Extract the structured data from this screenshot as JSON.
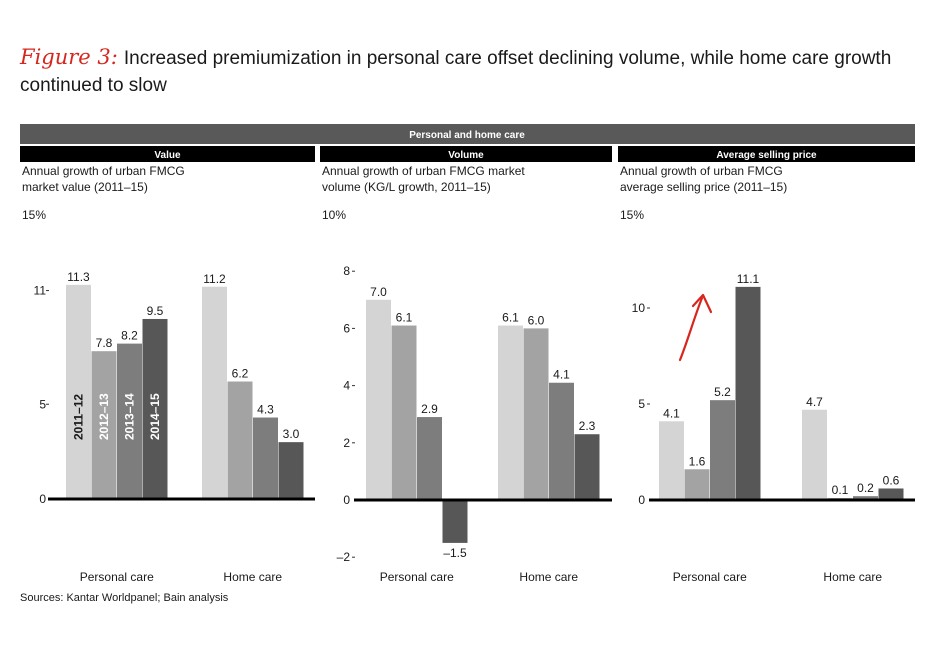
{
  "figure_label": "Figure 3:",
  "title": "Increased premiumization in personal care offset declining volume, while home care growth continued to slow",
  "header": "Personal and home care",
  "sources": "Sources: Kantar Worldpanel; Bain analysis",
  "colors": [
    "#d4d4d4",
    "#a3a3a3",
    "#7d7d7d",
    "#575757"
  ],
  "header_color": "#595959",
  "arrow_color": "#d7261e",
  "chart_data": [
    {
      "type": "bar",
      "title": "Value",
      "subtitle": [
        "Annual growth of urban FMCG",
        "market value (2011–15)"
      ],
      "unit_label": "15%",
      "categories": [
        "Personal care",
        "Home care"
      ],
      "series": [
        {
          "name": "2011–12",
          "values": [
            11.3,
            11.2
          ]
        },
        {
          "name": "2012–13",
          "values": [
            7.8,
            6.2
          ]
        },
        {
          "name": "2013–14",
          "values": [
            8.2,
            4.3
          ]
        },
        {
          "name": "2014–15",
          "values": [
            9.5,
            3.0
          ]
        }
      ],
      "value_labels": [
        [
          "11.3",
          "11.2"
        ],
        [
          "7.8",
          "6.2"
        ],
        [
          "8.2",
          "4.3"
        ],
        [
          "9.5",
          "3.0"
        ]
      ],
      "ylim": [
        0,
        15
      ],
      "yticks": [
        0,
        5,
        11
      ],
      "ytick_labels": [
        "0",
        "5",
        "11"
      ],
      "legend": "inside bars (vertical labels)"
    },
    {
      "type": "bar",
      "title": "Volume",
      "subtitle": [
        "Annual growth of urban FMCG market",
        "volume (KG/L growth, 2011–15)"
      ],
      "unit_label": "10%",
      "categories": [
        "Personal care",
        "Home care"
      ],
      "series": [
        {
          "name": "2011–12",
          "values": [
            7.0,
            6.1
          ]
        },
        {
          "name": "2012–13",
          "values": [
            6.1,
            6.0
          ]
        },
        {
          "name": "2013–14",
          "values": [
            2.9,
            4.1
          ]
        },
        {
          "name": "2014–15",
          "values": [
            -1.5,
            2.3
          ]
        }
      ],
      "value_labels": [
        [
          "7.0",
          "6.1"
        ],
        [
          "6.1",
          "6.0"
        ],
        [
          "2.9",
          "4.1"
        ],
        [
          "–1.5",
          "2.3"
        ]
      ],
      "ylim": [
        -2,
        10
      ],
      "yticks": [
        -2,
        0,
        2,
        4,
        6,
        8
      ],
      "ytick_labels": [
        "–2",
        "0",
        "2",
        "4",
        "6",
        "8"
      ]
    },
    {
      "type": "bar",
      "title": "Average selling price",
      "subtitle": [
        "Annual growth of urban FMCG",
        "average selling price (2011–15)"
      ],
      "unit_label": "15%",
      "categories": [
        "Personal care",
        "Home care"
      ],
      "series": [
        {
          "name": "2011–12",
          "values": [
            4.1,
            4.7
          ]
        },
        {
          "name": "2012–13",
          "values": [
            1.6,
            0.1
          ]
        },
        {
          "name": "2013–14",
          "values": [
            5.2,
            0.2
          ]
        },
        {
          "name": "2014–15",
          "values": [
            11.1,
            0.6
          ]
        }
      ],
      "value_labels": [
        [
          "4.1",
          "4.7"
        ],
        [
          "1.6",
          "0.1"
        ],
        [
          "5.2",
          "0.2"
        ],
        [
          "11.1",
          "0.6"
        ]
      ],
      "ylim": [
        0,
        15
      ],
      "yticks": [
        0,
        5,
        10
      ],
      "ytick_labels": [
        "0",
        "5",
        "10"
      ],
      "annotation": "red upward arrow next to Personal care 2014–15 bar"
    }
  ]
}
